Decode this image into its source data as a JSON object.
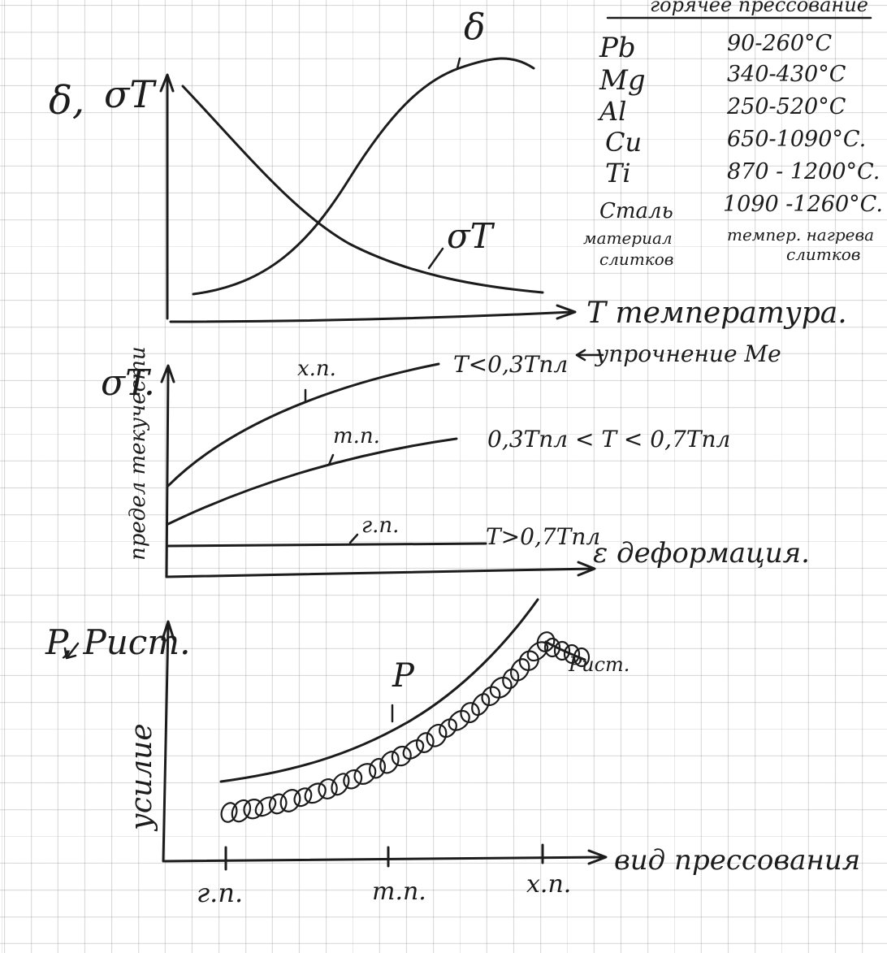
{
  "table": {
    "header": "горячее прессование",
    "rows": [
      {
        "material": "Pb",
        "range": "90-260°C"
      },
      {
        "material": "Mg",
        "range": "340-430°C"
      },
      {
        "material": "Al",
        "range": "250-520°C"
      },
      {
        "material": "Cu",
        "range": "650-1090°C."
      },
      {
        "material": "Ti",
        "range": "870 - 1200°C."
      },
      {
        "material": "Сталь",
        "range": "1090 -1260°C."
      }
    ],
    "footer_left_1": "материал",
    "footer_left_2": "слитков",
    "footer_right_1": "темпер. нагрева",
    "footer_right_2": "слитков"
  },
  "top_chart": {
    "y_label_1": "δ,",
    "y_label_2": "σT",
    "curve_delta_label": "δ",
    "curve_sigma_label": "σT",
    "x_label": "T температура."
  },
  "middle_chart": {
    "y_label": "σT.",
    "y_axis_text": "предел текучести",
    "curves": [
      {
        "label": "х.п.",
        "condition": "T<0,3Tпл"
      },
      {
        "label": "т.п.",
        "condition": "0,3Tпл < T < 0,7Tпл"
      },
      {
        "label": "г.п.",
        "condition": "T>0,7Tпл"
      }
    ],
    "annotation": "упрочнение Me",
    "x_label": "ε деформация."
  },
  "bottom_chart": {
    "y_label": "P, Pист.",
    "y_axis_text": "усилие",
    "curve_p_label": "P",
    "curve_pist_label": "Pист.",
    "x_label": "вид прессования",
    "x_ticks": [
      "г.п.",
      "т.п.",
      "х.п."
    ]
  },
  "colors": {
    "ink": "#1c1c1c",
    "grid": "#9a9a9a",
    "paper": "#ffffff"
  }
}
